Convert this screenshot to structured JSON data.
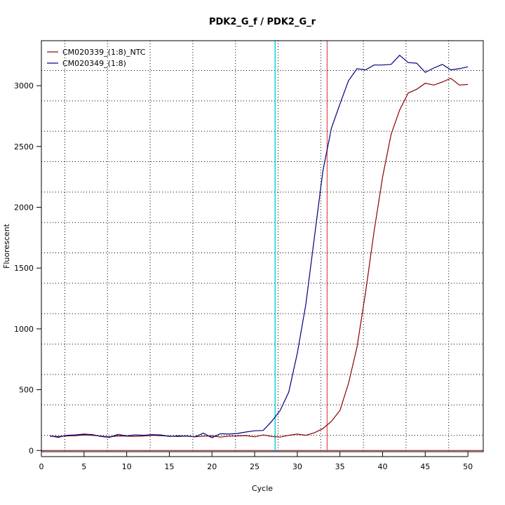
{
  "chart_data": {
    "type": "line",
    "title": "PDK2_G_f / PDK2_G_r",
    "xlabel": "Cycle",
    "ylabel": "Fluorescent",
    "xlim": [
      0,
      51.8
    ],
    "ylim": [
      -10,
      3370
    ],
    "xticks": [
      0,
      5,
      10,
      15,
      20,
      25,
      30,
      35,
      40,
      45,
      50
    ],
    "yticks": [
      0,
      500,
      1000,
      1500,
      2000,
      2500,
      3000
    ],
    "grid": true,
    "legend_position": "top-left",
    "threshold_y": 0,
    "threshold_color": "#8b0000",
    "vertical_markers": [
      {
        "x": 27.4,
        "color": "#00ccdd"
      },
      {
        "x": 33.5,
        "color": "#e06060"
      }
    ],
    "x": [
      1,
      2,
      3,
      4,
      5,
      6,
      7,
      8,
      9,
      10,
      11,
      12,
      13,
      14,
      15,
      16,
      17,
      18,
      19,
      20,
      21,
      22,
      23,
      24,
      25,
      26,
      27,
      28,
      29,
      30,
      31,
      32,
      33,
      34,
      35,
      36,
      37,
      38,
      39,
      40,
      41,
      42,
      43,
      44,
      45,
      46,
      47,
      48,
      49,
      50
    ],
    "series": [
      {
        "name": "CM020339_(1:8)_NTC",
        "color": "#8b0000",
        "values": [
          118,
          115,
          120,
          122,
          128,
          125,
          118,
          112,
          120,
          118,
          115,
          120,
          125,
          122,
          118,
          115,
          120,
          112,
          118,
          120,
          110,
          118,
          120,
          122,
          112,
          128,
          115,
          110,
          125,
          135,
          125,
          145,
          180,
          240,
          330,
          550,
          850,
          1300,
          1800,
          2250,
          2600,
          2800,
          2940,
          2970,
          3020,
          3005,
          3030,
          3060,
          3005,
          3010
        ]
      },
      {
        "name": "CM020349_(1:8)",
        "color": "#00007f",
        "values": [
          120,
          108,
          125,
          128,
          135,
          130,
          115,
          108,
          132,
          120,
          128,
          125,
          130,
          128,
          115,
          120,
          118,
          112,
          142,
          105,
          138,
          135,
          140,
          152,
          162,
          165,
          240,
          330,
          480,
          800,
          1200,
          1750,
          2300,
          2650,
          2850,
          3040,
          3140,
          3130,
          3170,
          3170,
          3175,
          3250,
          3190,
          3185,
          3110,
          3145,
          3175,
          3130,
          3140,
          3155
        ]
      }
    ]
  }
}
